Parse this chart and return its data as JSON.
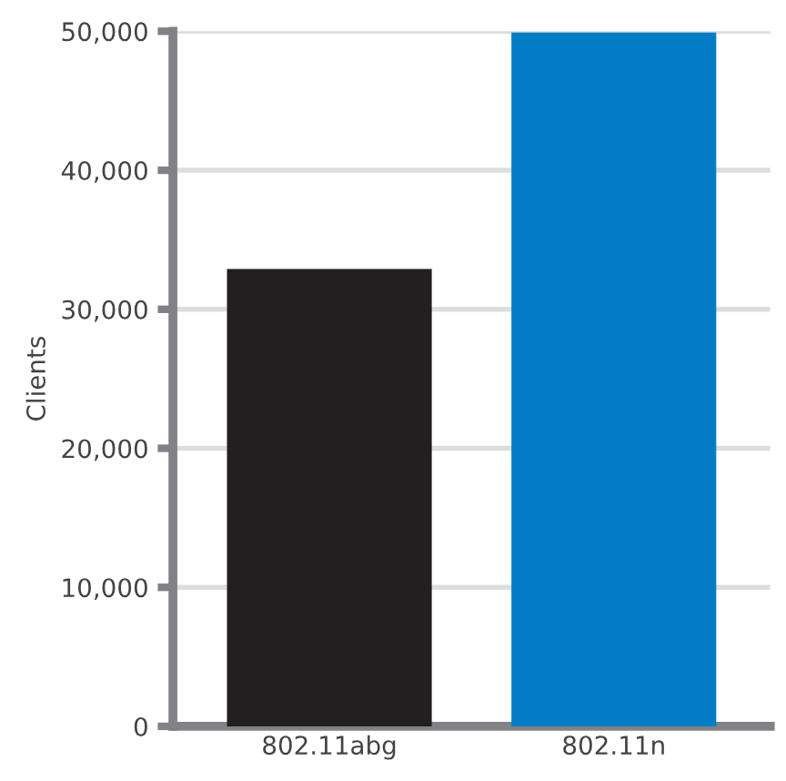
{
  "chart_data": {
    "type": "bar",
    "ylabel": "Clients",
    "categories": [
      "802.11abg",
      "802.11n"
    ],
    "values": [
      32900,
      49900
    ],
    "colors": [
      "#231f20",
      "#007dc5"
    ],
    "ylim": [
      0,
      50000
    ],
    "yticks": [
      {
        "value": 0,
        "label": "0"
      },
      {
        "value": 10000,
        "label": "10,000"
      },
      {
        "value": 20000,
        "label": "20,000"
      },
      {
        "value": 30000,
        "label": "30,000"
      },
      {
        "value": 40000,
        "label": "40,000"
      },
      {
        "value": 50000,
        "label": "50,000"
      }
    ],
    "grid": "y"
  }
}
